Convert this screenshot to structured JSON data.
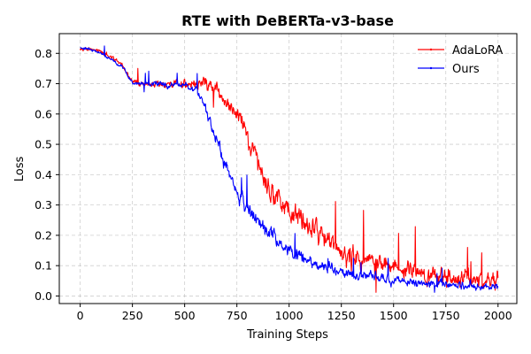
{
  "chart_data": {
    "type": "line",
    "title": "RTE with DeBERTa-v3-base",
    "xlabel": "Training  Steps",
    "ylabel": "Loss",
    "xlim": [
      -100,
      2090
    ],
    "ylim": [
      -0.025,
      0.865
    ],
    "grid": true,
    "legend_position": "upper-right",
    "xticks": [
      0,
      250,
      500,
      750,
      1000,
      1250,
      1500,
      1750,
      2000
    ],
    "yticks": [
      0.0,
      0.1,
      0.2,
      0.3,
      0.4,
      0.5,
      0.6,
      0.7,
      0.8
    ],
    "series": [
      {
        "name": "AdaLoRA",
        "color": "#ff0000",
        "anchors": [
          [
            0,
            0.82
          ],
          [
            50,
            0.812
          ],
          [
            100,
            0.805
          ],
          [
            150,
            0.785
          ],
          [
            200,
            0.76
          ],
          [
            250,
            0.705
          ],
          [
            300,
            0.702
          ],
          [
            350,
            0.698
          ],
          [
            400,
            0.697
          ],
          [
            450,
            0.698
          ],
          [
            500,
            0.699
          ],
          [
            550,
            0.7
          ],
          [
            600,
            0.705
          ],
          [
            650,
            0.68
          ],
          [
            700,
            0.64
          ],
          [
            750,
            0.59
          ],
          [
            800,
            0.52
          ],
          [
            850,
            0.44
          ],
          [
            900,
            0.36
          ],
          [
            950,
            0.32
          ],
          [
            1000,
            0.28
          ],
          [
            1050,
            0.25
          ],
          [
            1100,
            0.235
          ],
          [
            1150,
            0.21
          ],
          [
            1200,
            0.18
          ],
          [
            1250,
            0.15
          ],
          [
            1300,
            0.13
          ],
          [
            1350,
            0.12
          ],
          [
            1400,
            0.11
          ],
          [
            1450,
            0.1
          ],
          [
            1500,
            0.095
          ],
          [
            1550,
            0.09
          ],
          [
            1600,
            0.085
          ],
          [
            1650,
            0.075
          ],
          [
            1700,
            0.07
          ],
          [
            1750,
            0.065
          ],
          [
            1800,
            0.06
          ],
          [
            1850,
            0.055
          ],
          [
            1900,
            0.05
          ],
          [
            1950,
            0.048
          ],
          [
            2000,
            0.05
          ]
        ],
        "noise": [
          [
            0,
            0.006
          ],
          [
            240,
            0.008
          ],
          [
            520,
            0.014
          ],
          [
            650,
            0.022
          ],
          [
            800,
            0.032
          ],
          [
            1000,
            0.035
          ],
          [
            1250,
            0.033
          ],
          [
            1500,
            0.03
          ],
          [
            1750,
            0.028
          ],
          [
            2000,
            0.024
          ]
        ]
      },
      {
        "name": "Ours",
        "color": "#0000ff",
        "anchors": [
          [
            0,
            0.82
          ],
          [
            50,
            0.812
          ],
          [
            100,
            0.8
          ],
          [
            150,
            0.78
          ],
          [
            200,
            0.755
          ],
          [
            250,
            0.705
          ],
          [
            300,
            0.7
          ],
          [
            350,
            0.697
          ],
          [
            400,
            0.696
          ],
          [
            450,
            0.697
          ],
          [
            500,
            0.695
          ],
          [
            550,
            0.68
          ],
          [
            600,
            0.62
          ],
          [
            650,
            0.52
          ],
          [
            700,
            0.42
          ],
          [
            750,
            0.34
          ],
          [
            800,
            0.29
          ],
          [
            850,
            0.24
          ],
          [
            900,
            0.21
          ],
          [
            950,
            0.18
          ],
          [
            1000,
            0.15
          ],
          [
            1050,
            0.13
          ],
          [
            1100,
            0.11
          ],
          [
            1150,
            0.095
          ],
          [
            1200,
            0.085
          ],
          [
            1250,
            0.078
          ],
          [
            1300,
            0.072
          ],
          [
            1350,
            0.068
          ],
          [
            1400,
            0.062
          ],
          [
            1450,
            0.058
          ],
          [
            1500,
            0.052
          ],
          [
            1550,
            0.048
          ],
          [
            1600,
            0.045
          ],
          [
            1650,
            0.042
          ],
          [
            1700,
            0.04
          ],
          [
            1750,
            0.038
          ],
          [
            1800,
            0.036
          ],
          [
            1850,
            0.034
          ],
          [
            1900,
            0.032
          ],
          [
            1950,
            0.03
          ],
          [
            2000,
            0.03
          ]
        ],
        "noise": [
          [
            0,
            0.005
          ],
          [
            250,
            0.007
          ],
          [
            520,
            0.01
          ],
          [
            620,
            0.018
          ],
          [
            750,
            0.022
          ],
          [
            1000,
            0.02
          ],
          [
            1250,
            0.015
          ],
          [
            1500,
            0.013
          ],
          [
            1750,
            0.012
          ],
          [
            2000,
            0.011
          ]
        ]
      }
    ]
  }
}
